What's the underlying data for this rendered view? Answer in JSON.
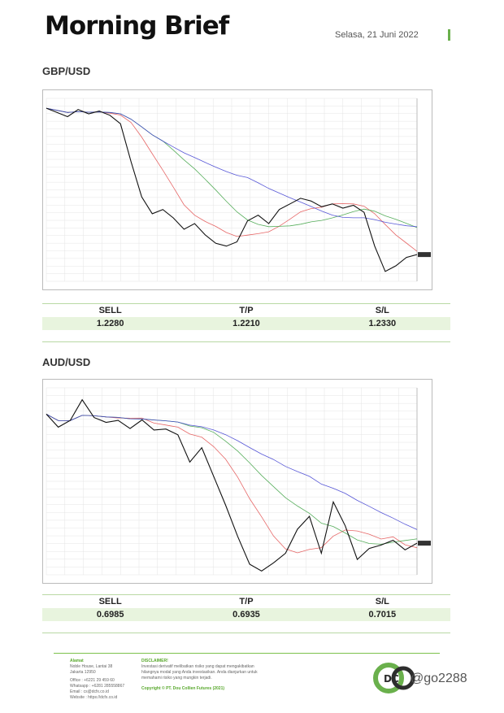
{
  "header": {
    "title": "Morning Brief",
    "date": "Selasa, 21 Juni 2022"
  },
  "sections": [
    {
      "label": "GBP/USD",
      "table": {
        "headers": [
          "SELL",
          "T/P",
          "S/L"
        ],
        "values": [
          "1.2280",
          "1.2210",
          "1.2330"
        ]
      }
    },
    {
      "label": "AUD/USD",
      "table": {
        "headers": [
          "SELL",
          "T/P",
          "S/L"
        ],
        "values": [
          "0.6985",
          "0.6935",
          "0.7015"
        ]
      }
    }
  ],
  "chart_data": [
    {
      "type": "line",
      "symbol": "GBP/USD",
      "series": [
        {
          "values": [
            1.258,
            1.255,
            1.252,
            1.257,
            1.254,
            1.256,
            1.253,
            1.247,
            1.22,
            1.195,
            1.183,
            1.186,
            1.18,
            1.172,
            1.176,
            1.168,
            1.162,
            1.16,
            1.163,
            1.178,
            1.182,
            1.176,
            1.186,
            1.19,
            1.194,
            1.192,
            1.188,
            1.19,
            1.187,
            1.189,
            1.184,
            1.16,
            1.142,
            1.146,
            1.152,
            1.154
          ]
        }
      ],
      "ylim": [
        1.135,
        1.265
      ],
      "grid": true
    },
    {
      "type": "line",
      "symbol": "AUD/USD",
      "series": [
        {
          "values": [
            0.7275,
            0.7248,
            0.7262,
            0.7305,
            0.7268,
            0.7258,
            0.7262,
            0.7245,
            0.7263,
            0.7242,
            0.7244,
            0.7232,
            0.7175,
            0.7205,
            0.7145,
            0.7085,
            0.702,
            0.6962,
            0.6948,
            0.6965,
            0.6985,
            0.7035,
            0.7062,
            0.6985,
            0.7092,
            0.7042,
            0.6972,
            0.6995,
            0.7002,
            0.7012,
            0.6992,
            0.7006
          ]
        }
      ],
      "ylim": [
        0.694,
        0.733
      ],
      "grid": true
    }
  ],
  "footer": {
    "address_heading": "Alamat",
    "address_lines": [
      "Noble House, Lantai 38",
      "Jakarta 12950"
    ],
    "office": "Office : +6221 29 459 60",
    "whatsapp": "Whatsapp : +6281 285558867",
    "email": "Email : cs@dcfx.co.id",
    "website": "Website : https://dcfx.co.id",
    "disclaimer_heading": "DISCLAIMER!",
    "disclaimer_lines": [
      "Investasi derivatif melibatkan risiko yang dapat mengakibatkan",
      "hilangnya modal yang Anda investasikan. Anda dianjurkan untuk",
      "memahami risiko yang mungkin terjadi."
    ],
    "copyright": "Copyright © PT. Dou Collien Futures (2021)",
    "logo_text": "DC",
    "watermark": "@go2288"
  },
  "colors": {
    "accent_green": "#6ab04c",
    "row_highlight": "#e8f4de",
    "ma_red": "#e24b4b",
    "ma_green": "#3aa040",
    "ma_blue": "#3a3ad0"
  }
}
